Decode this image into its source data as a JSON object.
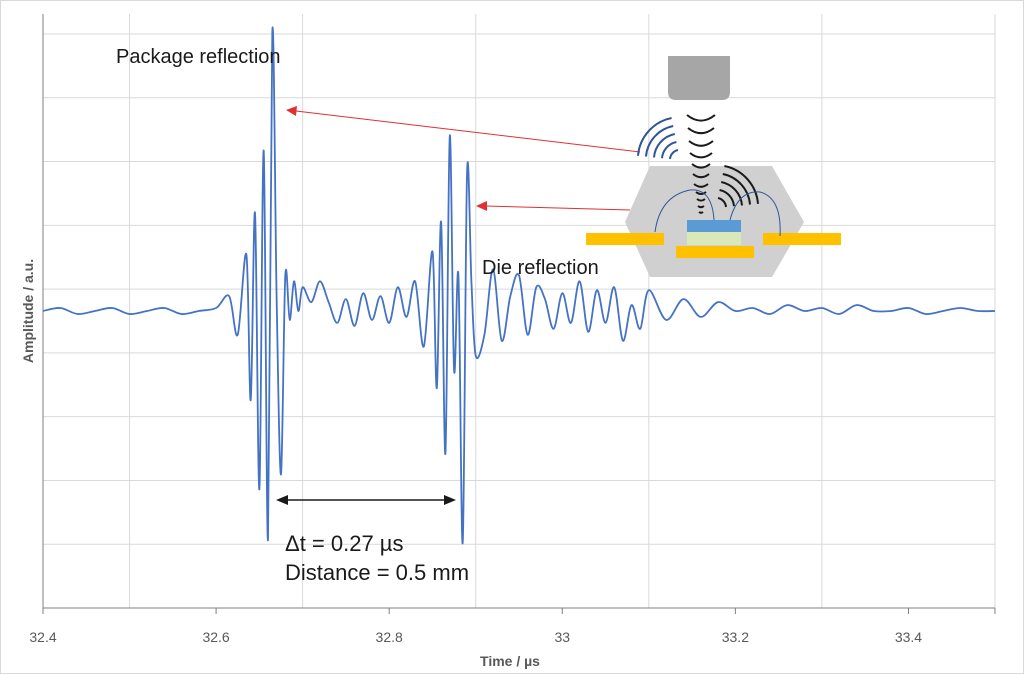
{
  "chart_data": {
    "type": "line",
    "title": "",
    "xlabel": "Time / µs",
    "ylabel": "Amplitude / a.u.",
    "xlim": [
      32.4,
      33.5
    ],
    "ylim": [
      -1.0,
      1.0
    ],
    "x_ticks": [
      32.4,
      32.6,
      32.8,
      33.0,
      33.2,
      33.4
    ],
    "x_tick_labels": [
      "32.4",
      "32.6",
      "32.8",
      "33",
      "33.2",
      "33.4"
    ],
    "vertical_gridlines_at": [
      32.5,
      32.7,
      32.9,
      33.1,
      33.3,
      33.5
    ],
    "horizontal_gridlines": 9,
    "legend": "none",
    "series": [
      {
        "color": "#4472c4",
        "x": [
          32.4,
          32.42,
          32.44,
          32.46,
          32.48,
          32.5,
          32.52,
          32.54,
          32.56,
          32.58,
          32.6,
          32.615,
          32.625,
          32.635,
          32.64,
          32.645,
          32.65,
          32.655,
          32.66,
          32.665,
          32.67,
          32.675,
          32.68,
          32.685,
          32.69,
          32.695,
          32.7,
          32.71,
          32.72,
          32.73,
          32.74,
          32.75,
          32.76,
          32.77,
          32.78,
          32.79,
          32.8,
          32.81,
          32.82,
          32.83,
          32.84,
          32.85,
          32.855,
          32.86,
          32.865,
          32.87,
          32.875,
          32.88,
          32.885,
          32.89,
          32.895,
          32.9,
          32.91,
          32.92,
          32.93,
          32.94,
          32.95,
          32.96,
          32.97,
          32.98,
          32.99,
          33.0,
          33.01,
          33.02,
          33.03,
          33.04,
          33.05,
          33.06,
          33.07,
          33.08,
          33.09,
          33.1,
          33.12,
          33.14,
          33.16,
          33.18,
          33.2,
          33.22,
          33.24,
          33.26,
          33.28,
          33.3,
          33.32,
          33.34,
          33.36,
          33.38,
          33.4,
          33.42,
          33.44,
          33.46,
          33.48,
          33.5
        ],
        "y": [
          0.0,
          0.01,
          -0.01,
          0.0,
          0.01,
          -0.01,
          0.0,
          0.01,
          -0.01,
          0.0,
          0.01,
          0.05,
          -0.08,
          0.19,
          -0.3,
          0.33,
          -0.6,
          0.54,
          -0.77,
          0.94,
          0.03,
          -0.55,
          0.12,
          -0.03,
          0.1,
          0.0,
          0.08,
          0.03,
          0.1,
          0.03,
          -0.04,
          0.04,
          -0.05,
          0.06,
          -0.03,
          0.05,
          -0.04,
          0.08,
          -0.02,
          0.1,
          -0.12,
          0.2,
          -0.26,
          0.3,
          -0.48,
          0.59,
          -0.2,
          0.12,
          -0.78,
          0.47,
          0.1,
          -0.15,
          -0.08,
          0.14,
          -0.1,
          0.05,
          0.12,
          -0.08,
          0.08,
          0.04,
          -0.06,
          0.06,
          -0.04,
          0.1,
          -0.07,
          0.07,
          -0.04,
          0.08,
          -0.1,
          0.02,
          -0.06,
          0.07,
          -0.03,
          0.04,
          -0.02,
          0.03,
          0.0,
          0.01,
          -0.01,
          0.02,
          0.0,
          0.01,
          -0.01,
          0.02,
          0.0,
          0.0,
          0.01,
          -0.01,
          0.0,
          0.01,
          0.0,
          0.0
        ]
      }
    ],
    "annotations": {
      "package_reflection": "Package reflection",
      "die_reflection": "Die reflection",
      "delta_t": "Δt = 0.27 µs",
      "distance": "Distance = 0.5 mm"
    }
  },
  "colors": {
    "trace": "#4472c4",
    "grid": "#d9d9d9",
    "axis": "#7f7f7f",
    "pointer_arrow": "#e03030",
    "transducer": "#a6a6a6",
    "package": "#d0d0d0",
    "leads": "#ffc000",
    "die": "#5b9bd5",
    "die_attach": "#d8e8b8",
    "wave_dark": "#1a1a1a",
    "wave_blue": "#2f5597"
  },
  "icons": [
    "ultrasonic-transducer-icon",
    "chip-package-icon"
  ]
}
